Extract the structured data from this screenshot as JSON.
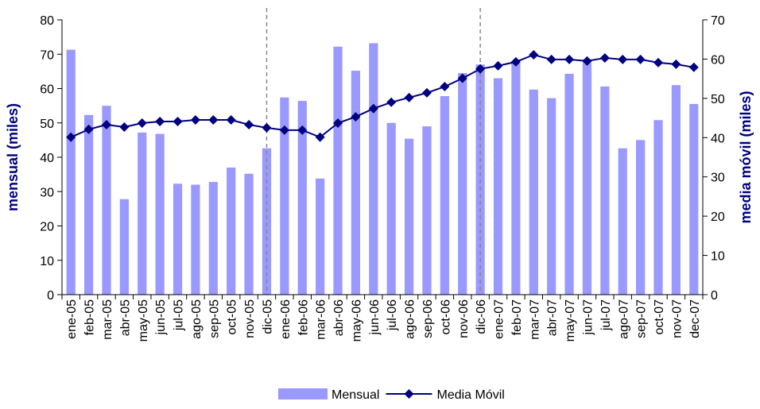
{
  "chart_data": {
    "type": "bar-line",
    "categories": [
      "ene-05",
      "feb-05",
      "mar-05",
      "abr-05",
      "may-05",
      "jun-05",
      "jul-05",
      "ago-05",
      "sep-05",
      "oct-05",
      "nov-05",
      "dic-05",
      "ene-06",
      "feb-06",
      "mar-06",
      "abr-06",
      "may-06",
      "jun-06",
      "jul-06",
      "ago-06",
      "sep-06",
      "oct-06",
      "nov-06",
      "dic-06",
      "ene-07",
      "feb-07",
      "mar-07",
      "abr-07",
      "may-07",
      "jun-07",
      "jul-07",
      "ago-07",
      "sep-07",
      "oct-07",
      "nov-07",
      "dec-07"
    ],
    "series": [
      {
        "name": "Mensual",
        "type": "bar",
        "color": "#9999ff",
        "values": [
          71.3,
          52.3,
          55,
          27.8,
          47.2,
          46.8,
          32.3,
          32,
          32.8,
          37,
          35.2,
          42.6,
          57.4,
          56.4,
          33.8,
          72.2,
          65.2,
          73.2,
          50,
          45.4,
          49,
          57.8,
          64.5,
          67,
          63,
          67.5,
          59.7,
          57.2,
          64.3,
          68.5,
          60.6,
          42.6,
          45,
          50.8,
          61,
          55.5
        ]
      },
      {
        "name": "Media Móvil",
        "type": "line",
        "axis": "y2",
        "color": "#000080",
        "values": [
          40.1,
          42.1,
          43.3,
          42.7,
          43.7,
          44.1,
          44.1,
          44.5,
          44.5,
          44.5,
          43.3,
          42.5,
          41.9,
          41.9,
          40.1,
          43.7,
          45.3,
          47.4,
          49,
          50.2,
          51.4,
          53,
          55.1,
          57.5,
          58.3,
          59.3,
          61.1,
          59.9,
          59.9,
          59.5,
          60.3,
          59.9,
          59.9,
          59.1,
          58.7,
          57.9
        ]
      }
    ],
    "ylabel": "mensual (miles)",
    "y2label": "media móvil (miles)",
    "ylim": [
      0,
      80
    ],
    "yticks": [
      0,
      10,
      20,
      30,
      40,
      50,
      60,
      70,
      80
    ],
    "y2lim": [
      0,
      70
    ],
    "y2ticks": [
      0,
      10,
      20,
      30,
      40,
      50,
      60,
      70
    ],
    "vlines": [
      11,
      23
    ],
    "legend": "bottom"
  }
}
